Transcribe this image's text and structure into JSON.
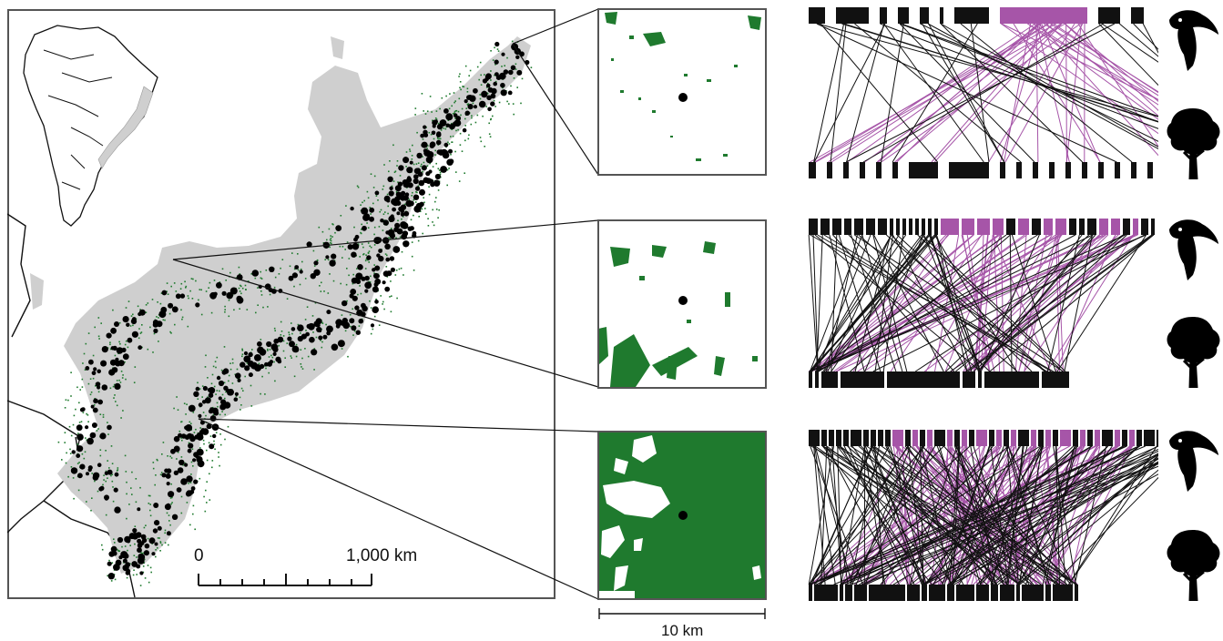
{
  "colors": {
    "forest": "#1f7a2e",
    "range": "#cfcfcf",
    "points": "#000000",
    "frugivore_highlight": "#a655a8",
    "node": "#111111",
    "frame": "#555555"
  },
  "main_map": {
    "scale_bar": {
      "start_label": "0",
      "end_label": "1,000 km"
    }
  },
  "insets": {
    "scale_label": "10 km",
    "panels": [
      {
        "forest_cover": 0.05
      },
      {
        "forest_cover": 0.15
      },
      {
        "forest_cover": 0.85
      }
    ]
  },
  "networks": {
    "top_icon": "toucan-icon",
    "bottom_icon": "tree-icon",
    "panels": [
      {
        "links": 70,
        "highlight_links": 38
      },
      {
        "links": 130,
        "highlight_links": 55
      },
      {
        "links": 260,
        "highlight_links": 110
      }
    ]
  }
}
